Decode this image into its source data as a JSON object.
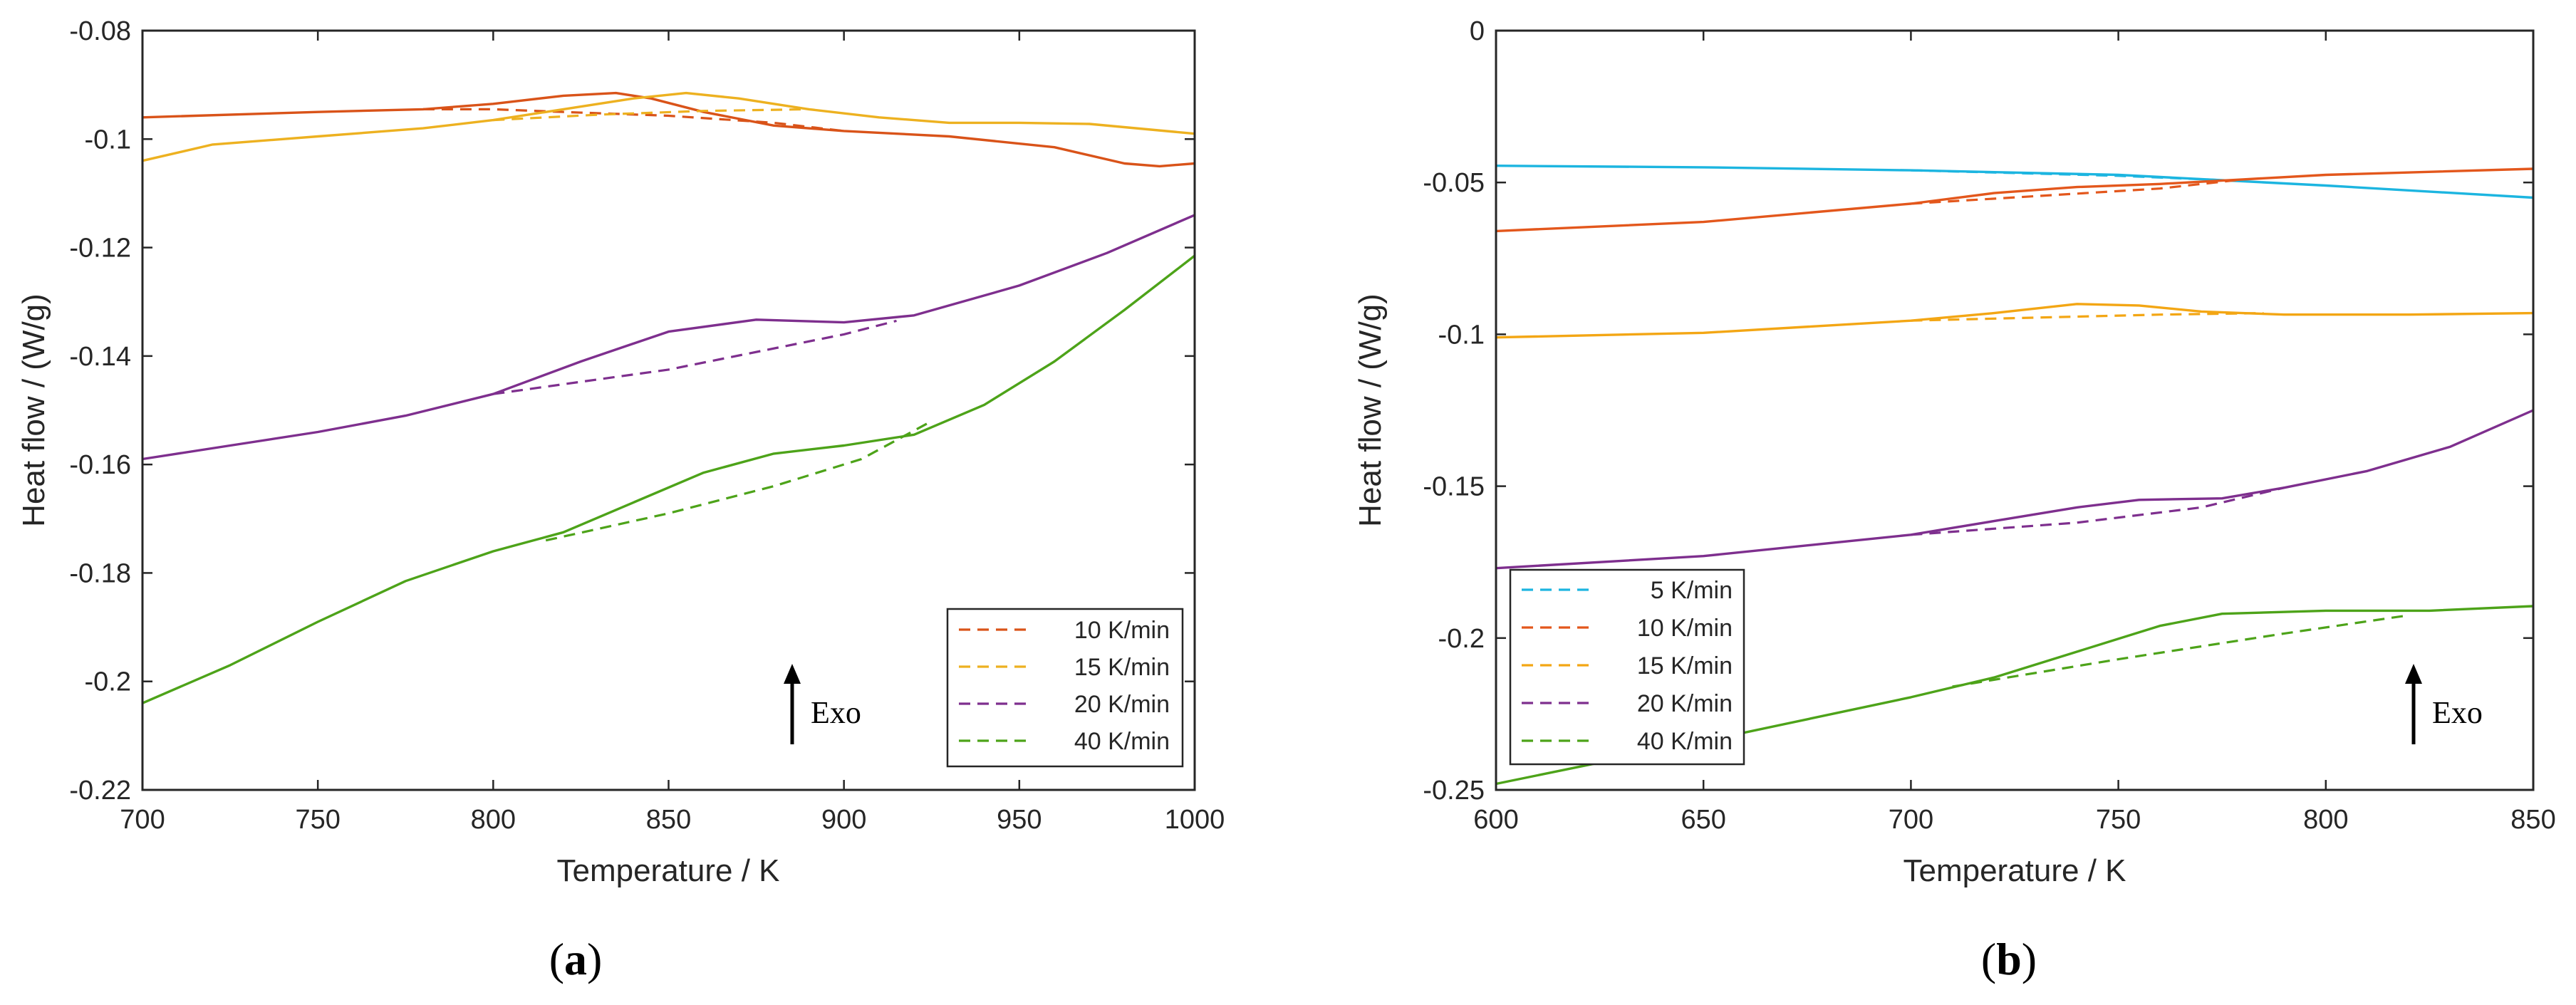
{
  "chart_data": [
    {
      "panel": "(a)",
      "panel_letter": "a",
      "type": "line",
      "xlabel": "Temperature / K",
      "ylabel": "Heat flow / (W/g)",
      "xlim": [
        700,
        1000
      ],
      "ylim": [
        -0.22,
        -0.08
      ],
      "xticks": [
        700,
        750,
        800,
        850,
        900,
        950,
        1000
      ],
      "yticks": [
        -0.22,
        -0.2,
        -0.18,
        -0.16,
        -0.14,
        -0.12,
        -0.1,
        -0.08
      ],
      "xtick_labels": [
        "700",
        "750",
        "800",
        "850",
        "900",
        "950",
        "1000"
      ],
      "ytick_labels": [
        "-0.22",
        "-0.2",
        "-0.18",
        "-0.16",
        "-0.14",
        "-0.12",
        "-0.1",
        "-0.08"
      ],
      "legend_position": "bottom-right",
      "annotation": "Exo",
      "series": [
        {
          "name": "10 K/min",
          "color": "#D95319",
          "solid": [
            [
              700,
              -0.096
            ],
            [
              750,
              -0.095
            ],
            [
              780,
              -0.0945
            ],
            [
              800,
              -0.0935
            ],
            [
              820,
              -0.092
            ],
            [
              835,
              -0.0915
            ],
            [
              845,
              -0.0925
            ],
            [
              860,
              -0.095
            ],
            [
              880,
              -0.0975
            ],
            [
              900,
              -0.0985
            ],
            [
              930,
              -0.0995
            ],
            [
              960,
              -0.1015
            ],
            [
              980,
              -0.1045
            ],
            [
              990,
              -0.105
            ],
            [
              1000,
              -0.1045
            ]
          ],
          "dashed": [
            [
              780,
              -0.0945
            ],
            [
              800,
              -0.0945
            ],
            [
              820,
              -0.095
            ],
            [
              850,
              -0.0957
            ],
            [
              880,
              -0.097
            ],
            [
              900,
              -0.0985
            ]
          ]
        },
        {
          "name": "15 K/min",
          "color": "#EDB120",
          "solid": [
            [
              700,
              -0.104
            ],
            [
              720,
              -0.101
            ],
            [
              750,
              -0.0995
            ],
            [
              780,
              -0.098
            ],
            [
              800,
              -0.0965
            ],
            [
              820,
              -0.0945
            ],
            [
              840,
              -0.0925
            ],
            [
              855,
              -0.0915
            ],
            [
              870,
              -0.0925
            ],
            [
              890,
              -0.0945
            ],
            [
              910,
              -0.096
            ],
            [
              930,
              -0.097
            ],
            [
              950,
              -0.097
            ],
            [
              970,
              -0.0972
            ],
            [
              1000,
              -0.099
            ]
          ],
          "dashed": [
            [
              800,
              -0.0965
            ],
            [
              830,
              -0.0955
            ],
            [
              860,
              -0.0948
            ],
            [
              890,
              -0.0945
            ]
          ]
        },
        {
          "name": "20 K/min",
          "color": "#7E2F8E",
          "solid": [
            [
              700,
              -0.159
            ],
            [
              725,
              -0.1565
            ],
            [
              750,
              -0.154
            ],
            [
              775,
              -0.151
            ],
            [
              800,
              -0.147
            ],
            [
              825,
              -0.141
            ],
            [
              850,
              -0.1355
            ],
            [
              875,
              -0.1333
            ],
            [
              900,
              -0.1338
            ],
            [
              920,
              -0.1325
            ],
            [
              950,
              -0.127
            ],
            [
              975,
              -0.121
            ],
            [
              1000,
              -0.114
            ]
          ],
          "dashed": [
            [
              800,
              -0.147
            ],
            [
              850,
              -0.1425
            ],
            [
              900,
              -0.136
            ],
            [
              915,
              -0.1335
            ]
          ]
        },
        {
          "name": "40 K/min",
          "color": "#4DA319",
          "solid": [
            [
              700,
              -0.204
            ],
            [
              725,
              -0.197
            ],
            [
              750,
              -0.189
            ],
            [
              775,
              -0.1815
            ],
            [
              800,
              -0.176
            ],
            [
              820,
              -0.1725
            ],
            [
              840,
              -0.167
            ],
            [
              860,
              -0.1615
            ],
            [
              880,
              -0.158
            ],
            [
              900,
              -0.1565
            ],
            [
              920,
              -0.1545
            ],
            [
              940,
              -0.149
            ],
            [
              960,
              -0.141
            ],
            [
              980,
              -0.1315
            ],
            [
              1000,
              -0.1215
            ]
          ],
          "dashed": [
            [
              815,
              -0.174
            ],
            [
              850,
              -0.169
            ],
            [
              880,
              -0.164
            ],
            [
              905,
              -0.159
            ],
            [
              925,
              -0.152
            ]
          ]
        }
      ]
    },
    {
      "panel": "(b)",
      "panel_letter": "b",
      "type": "line",
      "xlabel": "Temperature / K",
      "ylabel": "Heat flow / (W/g)",
      "xlim": [
        600,
        850
      ],
      "ylim": [
        -0.25,
        0
      ],
      "xticks": [
        600,
        650,
        700,
        750,
        800,
        850
      ],
      "yticks": [
        -0.25,
        -0.2,
        -0.15,
        -0.1,
        -0.05,
        0
      ],
      "xtick_labels": [
        "600",
        "650",
        "700",
        "750",
        "800",
        "850"
      ],
      "ytick_labels": [
        "-0.25",
        "-0.2",
        "-0.15",
        "-0.1",
        "-0.05",
        "0"
      ],
      "legend_position": "bottom-left",
      "annotation": "Exo",
      "series": [
        {
          "name": "5 K/min",
          "color": "#1CB5E0",
          "solid": [
            [
              600,
              -0.0445
            ],
            [
              650,
              -0.045
            ],
            [
              700,
              -0.046
            ],
            [
              750,
              -0.0475
            ],
            [
              800,
              -0.051
            ],
            [
              850,
              -0.055
            ]
          ],
          "dashed": [
            [
              700,
              -0.046
            ],
            [
              750,
              -0.0478
            ],
            [
              780,
              -0.0495
            ]
          ]
        },
        {
          "name": "10 K/min",
          "color": "#E3571C",
          "solid": [
            [
              600,
              -0.066
            ],
            [
              650,
              -0.063
            ],
            [
              700,
              -0.057
            ],
            [
              720,
              -0.0535
            ],
            [
              740,
              -0.0515
            ],
            [
              760,
              -0.0505
            ],
            [
              780,
              -0.049
            ],
            [
              800,
              -0.0475
            ],
            [
              850,
              -0.0455
            ]
          ],
          "dashed": [
            [
              700,
              -0.057
            ],
            [
              730,
              -0.0545
            ],
            [
              760,
              -0.052
            ],
            [
              780,
              -0.049
            ]
          ]
        },
        {
          "name": "15 K/min",
          "color": "#F3A614",
          "solid": [
            [
              600,
              -0.101
            ],
            [
              650,
              -0.0995
            ],
            [
              700,
              -0.0955
            ],
            [
              720,
              -0.093
            ],
            [
              740,
              -0.09
            ],
            [
              755,
              -0.0905
            ],
            [
              770,
              -0.0925
            ],
            [
              790,
              -0.0935
            ],
            [
              820,
              -0.0935
            ],
            [
              850,
              -0.093
            ]
          ],
          "dashed": [
            [
              700,
              -0.0955
            ],
            [
              730,
              -0.0945
            ],
            [
              760,
              -0.0935
            ],
            [
              785,
              -0.093
            ]
          ]
        },
        {
          "name": "20 K/min",
          "color": "#7E2F8E",
          "solid": [
            [
              600,
              -0.177
            ],
            [
              650,
              -0.173
            ],
            [
              700,
              -0.166
            ],
            [
              720,
              -0.1615
            ],
            [
              740,
              -0.157
            ],
            [
              755,
              -0.1545
            ],
            [
              775,
              -0.154
            ],
            [
              790,
              -0.1505
            ],
            [
              810,
              -0.145
            ],
            [
              830,
              -0.137
            ],
            [
              850,
              -0.125
            ]
          ],
          "dashed": [
            [
              700,
              -0.166
            ],
            [
              740,
              -0.162
            ],
            [
              770,
              -0.157
            ],
            [
              790,
              -0.1505
            ]
          ]
        },
        {
          "name": "40 K/min",
          "color": "#4DA319",
          "solid": [
            [
              600,
              -0.248
            ],
            [
              650,
              -0.234
            ],
            [
              700,
              -0.2195
            ],
            [
              720,
              -0.213
            ],
            [
              740,
              -0.2045
            ],
            [
              760,
              -0.196
            ],
            [
              775,
              -0.192
            ],
            [
              800,
              -0.191
            ],
            [
              825,
              -0.191
            ],
            [
              850,
              -0.1895
            ]
          ],
          "dashed": [
            [
              710,
              -0.216
            ],
            [
              750,
              -0.207
            ],
            [
              790,
              -0.1985
            ],
            [
              820,
              -0.1925
            ]
          ]
        }
      ]
    }
  ]
}
